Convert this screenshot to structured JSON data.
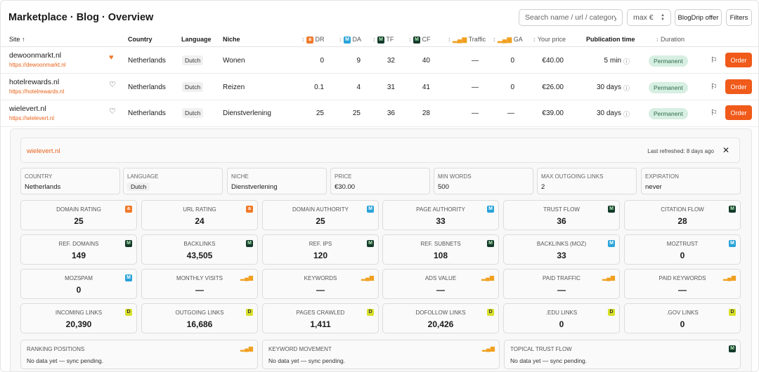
{
  "header": {
    "title": "Marketplace · Blog · Overview",
    "search_placeholder": "Search name / url / category...",
    "max_placeholder": "max €",
    "offer_label": "BlogDrip offer",
    "filters_label": "Filters"
  },
  "columns": {
    "site": "Site ↑",
    "country": "Country",
    "language": "Language",
    "niche": "Niche",
    "dr": "DR",
    "da": "DA",
    "tf": "TF",
    "cf": "CF",
    "traffic": "Traffic",
    "ga": "GA",
    "price": "Your price",
    "pubtime": "Publication time",
    "duration": "Duration"
  },
  "rows": [
    {
      "name": "dewoonmarkt.nl",
      "url": "https://dewoonmarkt.nl",
      "country": "Netherlands",
      "language": "Dutch",
      "niche": "Wonen",
      "dr": "0",
      "da": "9",
      "tf": "32",
      "cf": "40",
      "traffic": "—",
      "ga": "0",
      "price": "€40.00",
      "pubtime": "5 min",
      "duration": "Permanent",
      "order": "Order",
      "favorite": true
    },
    {
      "name": "hotelrewards.nl",
      "url": "https://hotelrewards.nl",
      "country": "Netherlands",
      "language": "Dutch",
      "niche": "Reizen",
      "dr": "0.1",
      "da": "4",
      "tf": "31",
      "cf": "41",
      "traffic": "—",
      "ga": "0",
      "price": "€26.00",
      "pubtime": "30 days",
      "duration": "Permanent",
      "order": "Order",
      "favorite": false
    },
    {
      "name": "wielevert.nl",
      "url": "https://wielevert.nl",
      "country": "Netherlands",
      "language": "Dutch",
      "niche": "Dienstverlening",
      "dr": "25",
      "da": "25",
      "tf": "36",
      "cf": "28",
      "traffic": "—",
      "ga": "—",
      "price": "€39.00",
      "pubtime": "30 days",
      "duration": "Permanent",
      "order": "Order",
      "favorite": false
    }
  ],
  "detail": {
    "site": "wielevert.nl",
    "refreshed": "Last refreshed: 8 days ago",
    "info": [
      {
        "label": "Country",
        "value": "Netherlands"
      },
      {
        "label": "Language",
        "value": "Dutch"
      },
      {
        "label": "Niche",
        "value": "Dienstverlening"
      },
      {
        "label": "Price",
        "value": "€30.00"
      },
      {
        "label": "Min words",
        "value": "500"
      },
      {
        "label": "Max outgoing links",
        "value": "2"
      },
      {
        "label": "Expiration",
        "value": "never"
      }
    ],
    "metrics": [
      {
        "label": "Domain Rating",
        "value": "25",
        "src": "ahrefs"
      },
      {
        "label": "URL Rating",
        "value": "24",
        "src": "ahrefs"
      },
      {
        "label": "Domain Authority",
        "value": "25",
        "src": "moz"
      },
      {
        "label": "Page Authority",
        "value": "33",
        "src": "moz"
      },
      {
        "label": "Trust Flow",
        "value": "36",
        "src": "majestic"
      },
      {
        "label": "Citation Flow",
        "value": "28",
        "src": "majestic"
      },
      {
        "label": "Ref. Domains",
        "value": "149",
        "src": "majestic"
      },
      {
        "label": "Backlinks",
        "value": "43,505",
        "src": "majestic"
      },
      {
        "label": "Ref. IPs",
        "value": "120",
        "src": "majestic"
      },
      {
        "label": "Ref. Subnets",
        "value": "108",
        "src": "majestic"
      },
      {
        "label": "Backlinks (Moz)",
        "value": "33",
        "src": "moz"
      },
      {
        "label": "MozTrust",
        "value": "0",
        "src": "moz"
      },
      {
        "label": "MozSpam",
        "value": "0",
        "src": "moz"
      },
      {
        "label": "Monthly Visits",
        "value": "—",
        "src": "semrush"
      },
      {
        "label": "Keywords",
        "value": "—",
        "src": "semrush"
      },
      {
        "label": "Ads Value",
        "value": "—",
        "src": "semrush"
      },
      {
        "label": "Paid Traffic",
        "value": "—",
        "src": "semrush"
      },
      {
        "label": "Paid Keywords",
        "value": "—",
        "src": "semrush"
      },
      {
        "label": "Incoming Links",
        "value": "20,390",
        "src": "seo"
      },
      {
        "label": "Outgoing Links",
        "value": "16,686",
        "src": "seo"
      },
      {
        "label": "Pages Crawled",
        "value": "1,411",
        "src": "seo"
      },
      {
        "label": "Dofollow Links",
        "value": "20,426",
        "src": "seo"
      },
      {
        "label": ".EDU Links",
        "value": "0",
        "src": "seo"
      },
      {
        "label": ".GOV Links",
        "value": "0",
        "src": "seo"
      }
    ],
    "wide": [
      {
        "label": "Ranking Positions",
        "value": "No data yet — sync pending.",
        "src": "semrush"
      },
      {
        "label": "Keyword Movement",
        "value": "No data yet — sync pending.",
        "src": "semrush"
      },
      {
        "label": "Topical Trust Flow",
        "value": "No data yet — sync pending.",
        "src": "majestic"
      }
    ]
  },
  "colors": {
    "accent": "#f05a1a",
    "link": "#e8621a",
    "permanent_bg": "#d7efe2"
  }
}
